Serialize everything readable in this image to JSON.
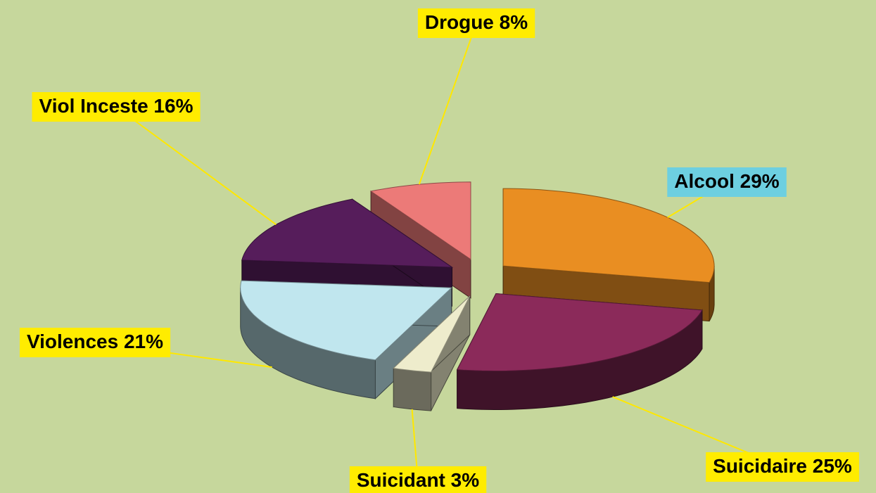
{
  "chart_data": {
    "type": "pie",
    "categories": [
      "Alcool",
      "Suicidaire",
      "Suicidant",
      "Violences",
      "Viol Inceste",
      "Drogue"
    ],
    "values": [
      29,
      25,
      3,
      21,
      16,
      8
    ],
    "value_labels": [
      "29%",
      "25%",
      "3%",
      "21%",
      "16%",
      "8%"
    ],
    "colors": [
      "#e98e22",
      "#8b2a5a",
      "#eeeccc",
      "#c0e6ee",
      "#561d5b",
      "#ec7a78"
    ],
    "label_colors": [
      "#6dcfe0",
      "#ffec00",
      "#ffec00",
      "#ffec00",
      "#ffec00",
      "#ffec00"
    ]
  }
}
